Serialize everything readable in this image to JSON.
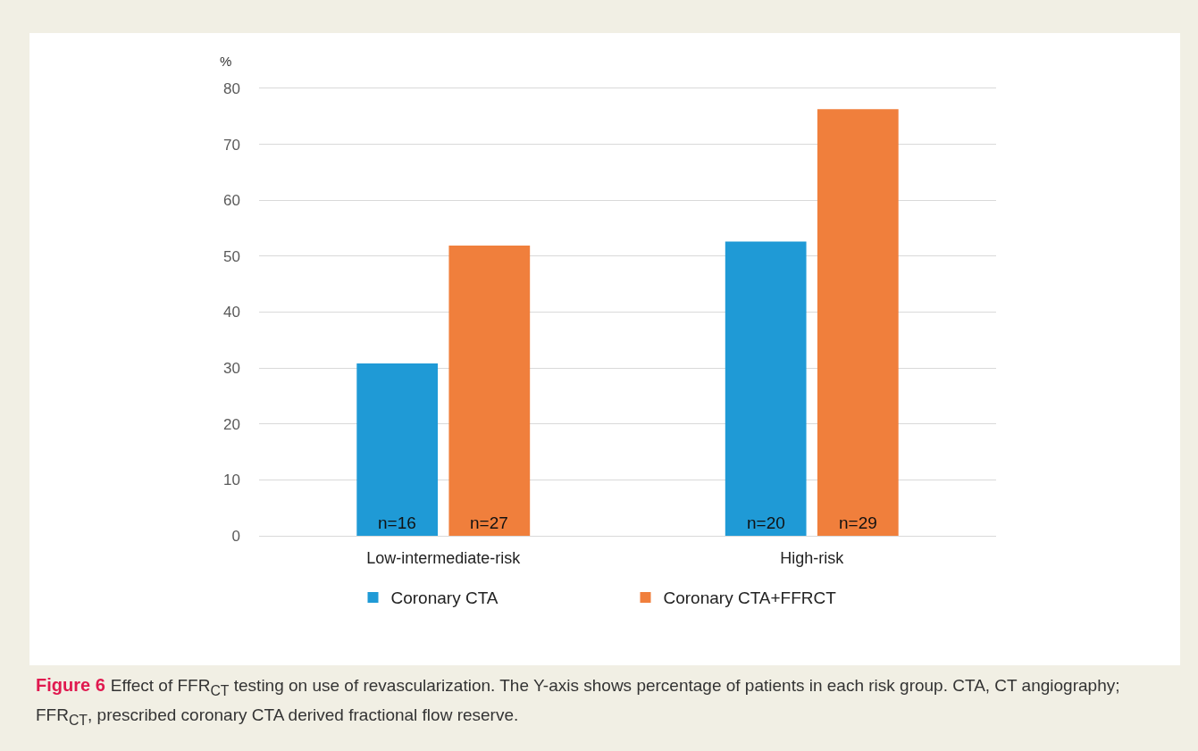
{
  "chart_data": {
    "type": "bar",
    "ylabel": "%",
    "categories": [
      "Low-intermediate-risk",
      "High-risk"
    ],
    "series": [
      {
        "name": "Coronary CTA",
        "color": "#1f9ad6",
        "values": [
          30.8,
          52.6
        ]
      },
      {
        "name": "Coronary CTA+FFRCT",
        "color": "#f07f3c",
        "values": [
          51.9,
          76.3
        ]
      }
    ],
    "ylim": [
      0,
      80
    ],
    "yticks": [
      0,
      10,
      20,
      30,
      40,
      50,
      60,
      70,
      80
    ],
    "grid": "y",
    "legend": "bottom",
    "annotations": [
      "n=16",
      "n=27",
      "n=20",
      "n=29",
      "Figure 6",
      "Effect of FFR$_{CT}$ testing on use of revascularization. The Y-axis shows percentage of patients in each risk group. CTA, CT angiography; FFR$_{CT}$, prescribed coronary CTA derived fractional flow reserve."
    ]
  }
}
